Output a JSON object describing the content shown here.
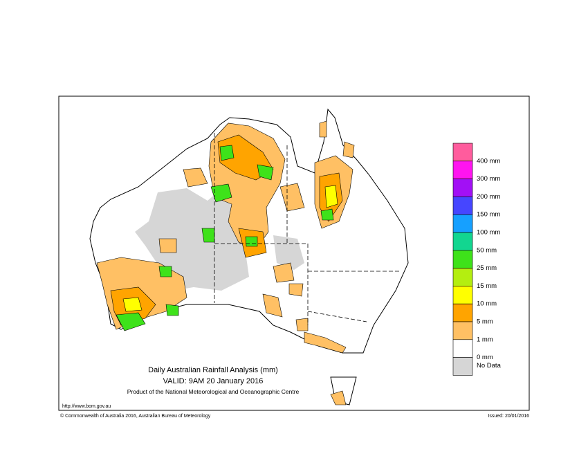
{
  "map": {
    "title": "Daily Australian Rainfall Analysis (mm)",
    "valid": "VALID: 9AM 20 January 2016",
    "product": "Product of the National Meteorological and Oceanographic Centre",
    "url": "http://www.bom.gov.au",
    "copyright": "© Commonwealth of Australia 2016, Australian Bureau of Meteorology",
    "issued": "Issued: 20/01/2016",
    "legend": [
      {
        "label": "400 mm",
        "color": "#ff5c9d"
      },
      {
        "label": "300 mm",
        "color": "#ff14f0"
      },
      {
        "label": "200 mm",
        "color": "#a210f5"
      },
      {
        "label": "150 mm",
        "color": "#4646ff"
      },
      {
        "label": "100 mm",
        "color": "#16a0ff"
      },
      {
        "label": "50 mm",
        "color": "#12d690"
      },
      {
        "label": "25 mm",
        "color": "#3ee21a"
      },
      {
        "label": "15 mm",
        "color": "#b4ee10"
      },
      {
        "label": "10 mm",
        "color": "#ffff00"
      },
      {
        "label": "5 mm",
        "color": "#ffa400"
      },
      {
        "label": "1 mm",
        "color": "#ffc064"
      },
      {
        "label": "0 mm",
        "color": "#ffffff"
      },
      {
        "label": "No Data",
        "color": "#d6d6d6"
      }
    ]
  }
}
